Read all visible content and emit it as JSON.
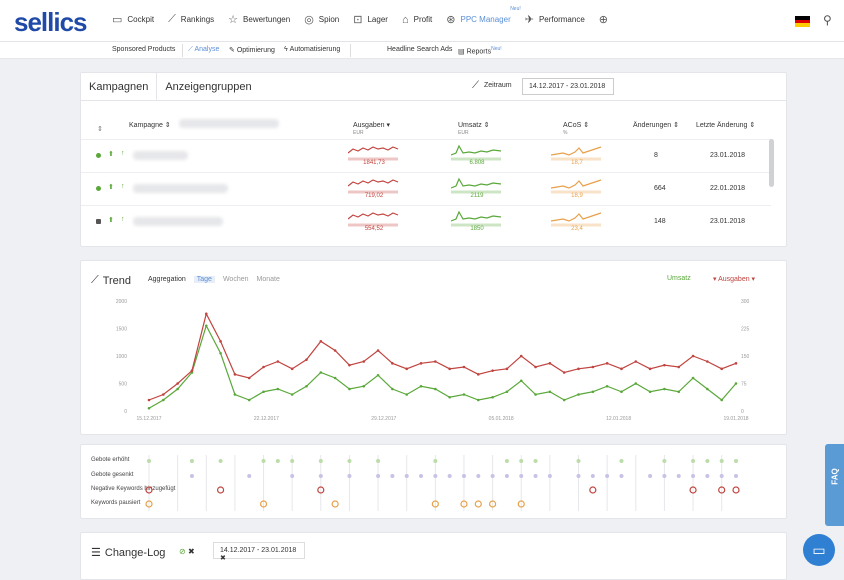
{
  "logo": "sellics",
  "nav": [
    {
      "icon": "monitor-icon",
      "glyph": "▭",
      "label": "Cockpit"
    },
    {
      "icon": "chart-line-icon",
      "glyph": "⟋",
      "label": "Rankings"
    },
    {
      "icon": "star-icon",
      "glyph": "☆",
      "label": "Bewertungen"
    },
    {
      "icon": "eye-icon",
      "glyph": "◎",
      "label": "Spion"
    },
    {
      "icon": "box-icon",
      "glyph": "⊡",
      "label": "Lager"
    },
    {
      "icon": "tag-icon",
      "glyph": "⌂",
      "label": "Profit"
    },
    {
      "icon": "ppc-icon",
      "glyph": "⊛",
      "label": "PPC Manager",
      "badge": "Neu!",
      "active": true
    },
    {
      "icon": "rocket-icon",
      "glyph": "✈",
      "label": "Performance"
    },
    {
      "icon": "plus-circle-icon",
      "glyph": "⊕",
      "label": ""
    }
  ],
  "colors": {
    "brand": "#1f4aa8",
    "accent": "#5b8fd6",
    "green": "#5aa83a",
    "red": "#c0443f",
    "orange": "#e8a04a",
    "purple": "#9a8bd0"
  },
  "subnav": {
    "sponsored": "Sponsored Products",
    "analyse": "Analyse",
    "optimierung": "Optimierung",
    "automatisierung": "Automatisierung",
    "headline": "Headline Search Ads",
    "reports": "Reports",
    "reports_badge": "Neu!"
  },
  "campaigns": {
    "tabs": [
      "Kampagnen",
      "Anzeigengruppen"
    ],
    "zeitraum_label": "Zeitraum",
    "date_range": "14.12.2017 - 23.01.2018",
    "columns": {
      "kampagne": "Kampagne",
      "ausgaben": "Ausgaben",
      "ausgaben_unit": "EUR",
      "umsatz": "Umsatz",
      "umsatz_unit": "EUR",
      "acos": "ACoS",
      "acos_unit": "%",
      "aenderungen": "Änderungen",
      "letzte": "Letzte Änderung"
    },
    "rows": [
      {
        "status": "green",
        "ausgaben": "1841,73",
        "umsatz": "6.808",
        "acos": "18,7",
        "aenderungen": "8",
        "letzte": "23.01.2018"
      },
      {
        "status": "green",
        "ausgaben": "719,02",
        "umsatz": "2119",
        "acos": "18,9",
        "aenderungen": "664",
        "letzte": "22.01.2018"
      },
      {
        "status": "dark",
        "ausgaben": "554,52",
        "umsatz": "1850",
        "acos": "23,4",
        "aenderungen": "148",
        "letzte": "23.01.2018"
      }
    ]
  },
  "trend": {
    "title": "Trend",
    "aggregation_label": "Aggregation",
    "options": [
      "Tage",
      "Wochen",
      "Monate"
    ],
    "selected": "Tage",
    "legend_left": "Umsatz",
    "legend_right": "Ausgaben"
  },
  "chart_data": {
    "type": "line",
    "y_left_ticks": [
      "0",
      "500",
      "1000",
      "1500",
      "2000"
    ],
    "y_right_ticks": [
      "0",
      "75",
      "150",
      "225",
      "300"
    ],
    "x_ticks": [
      "15.12.2017",
      "22.12.2017",
      "29.12.2017",
      "05.01.2018",
      "12.01.2018",
      "19.01.2018"
    ],
    "ylim_left": [
      0,
      2000
    ],
    "ylim_right": [
      0,
      300
    ],
    "series": [
      {
        "name": "Umsatz",
        "axis": "left",
        "color": "#5aa83a",
        "values": [
          50,
          200,
          400,
          700,
          1550,
          1050,
          300,
          200,
          350,
          400,
          300,
          450,
          700,
          600,
          400,
          450,
          650,
          400,
          300,
          450,
          400,
          250,
          300,
          200,
          250,
          350,
          550,
          300,
          350,
          200,
          300,
          350,
          450,
          350,
          500,
          350,
          400,
          350,
          600,
          400,
          200,
          500
        ]
      },
      {
        "name": "Ausgaben",
        "axis": "right",
        "color": "#c0443f",
        "values": [
          30,
          45,
          75,
          110,
          265,
          190,
          100,
          90,
          120,
          135,
          115,
          140,
          190,
          165,
          125,
          135,
          165,
          130,
          115,
          130,
          135,
          115,
          120,
          100,
          110,
          115,
          150,
          120,
          130,
          105,
          115,
          120,
          130,
          115,
          135,
          115,
          125,
          120,
          150,
          135,
          115,
          130
        ]
      }
    ]
  },
  "events": {
    "labels": [
      "Gebote erhöht",
      "Gebote gesenkt",
      "Negative Keywords hinzugefügt",
      "Keywords pausiert"
    ]
  },
  "changelog": {
    "title": "Change-Log",
    "date_range": "14.12.2017 - 23.01.2018"
  },
  "faq": "FAQ"
}
